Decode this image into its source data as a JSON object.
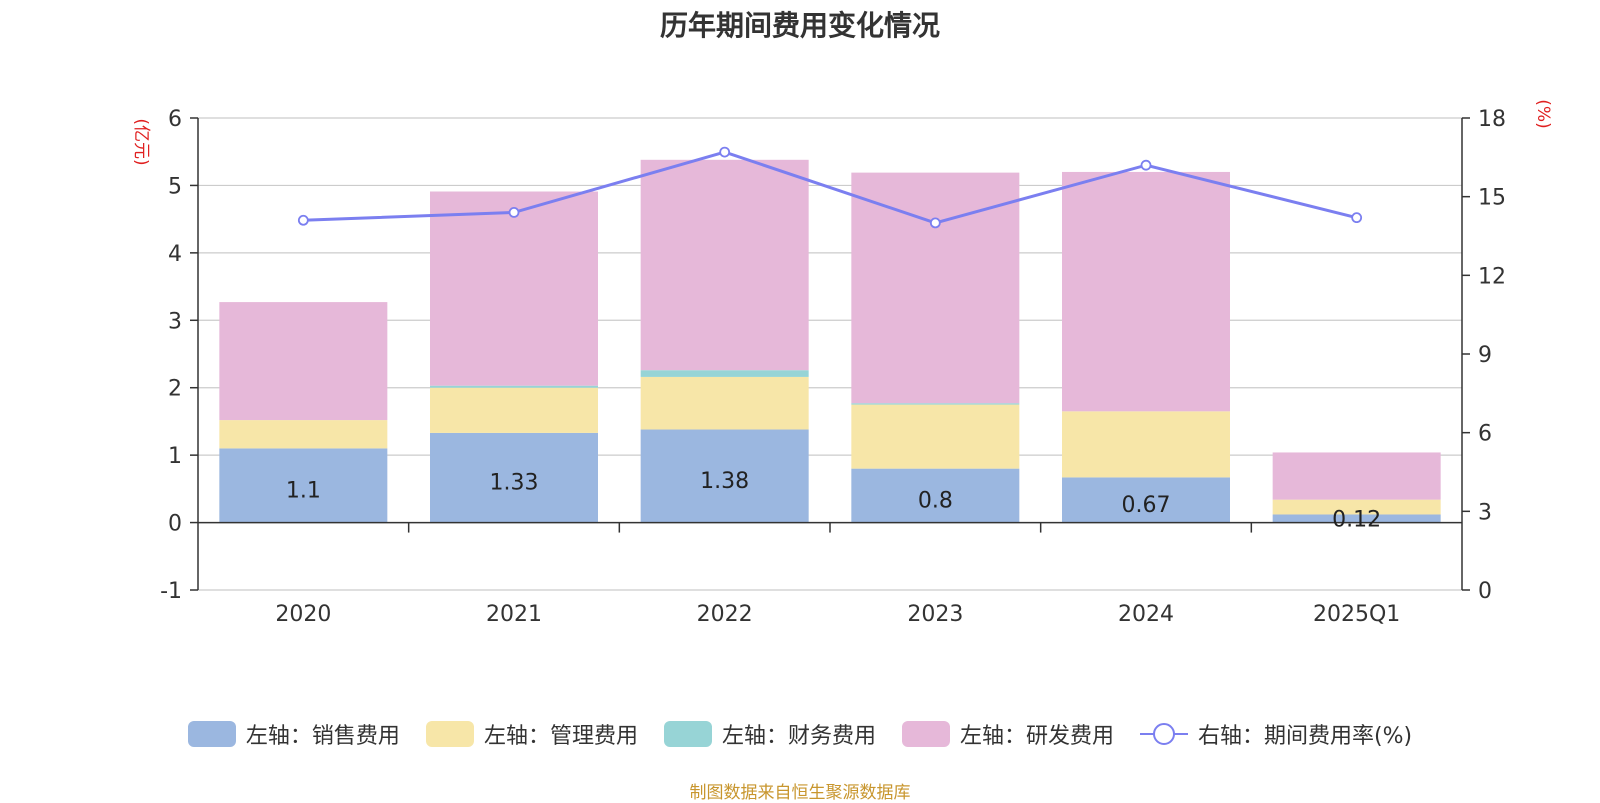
{
  "chart_data": {
    "type": "bar",
    "title": "历年期间费用变化情况",
    "categories": [
      "2020",
      "2021",
      "2022",
      "2023",
      "2024",
      "2025Q1"
    ],
    "y_left_label": "(亿元)",
    "y_right_label": "(%)",
    "y_left_ticks": [
      "6",
      "5",
      "4",
      "3",
      "2",
      "1",
      "0",
      "-1"
    ],
    "y_right_ticks": [
      "18",
      "15",
      "12",
      "9",
      "6",
      "3",
      "0"
    ],
    "ylim_left": [
      -1,
      6
    ],
    "ylim_right": [
      0,
      18
    ],
    "stacked": true,
    "series": [
      {
        "name": "左轴：销售费用",
        "axis": "left",
        "type": "bar",
        "color": "#9bb7e0",
        "values": [
          1.1,
          1.33,
          1.38,
          0.8,
          0.67,
          0.12
        ],
        "labels": [
          "1.1",
          "1.33",
          "1.38",
          "0.8",
          "0.67",
          "0.12"
        ]
      },
      {
        "name": "左轴：管理费用",
        "axis": "left",
        "type": "bar",
        "color": "#f7e6a8",
        "values": [
          0.42,
          0.67,
          0.78,
          0.95,
          0.98,
          0.22
        ]
      },
      {
        "name": "左轴：财务费用",
        "axis": "left",
        "type": "bar",
        "color": "#97d4d6",
        "values": [
          0.0,
          0.03,
          0.1,
          0.02,
          0.0,
          0.0
        ]
      },
      {
        "name": "左轴：研发费用",
        "axis": "left",
        "type": "bar",
        "color": "#e6b8d9",
        "values": [
          1.75,
          2.88,
          3.12,
          3.42,
          3.55,
          0.7
        ]
      },
      {
        "name": "右轴：期间费用率(%)",
        "axis": "right",
        "type": "line",
        "color": "#7b7ff0",
        "values": [
          14.1,
          14.4,
          16.7,
          14.0,
          16.2,
          14.2
        ]
      }
    ],
    "grid": true,
    "legend_position": "bottom"
  },
  "source_text": "制图数据来自恒生聚源数据库"
}
